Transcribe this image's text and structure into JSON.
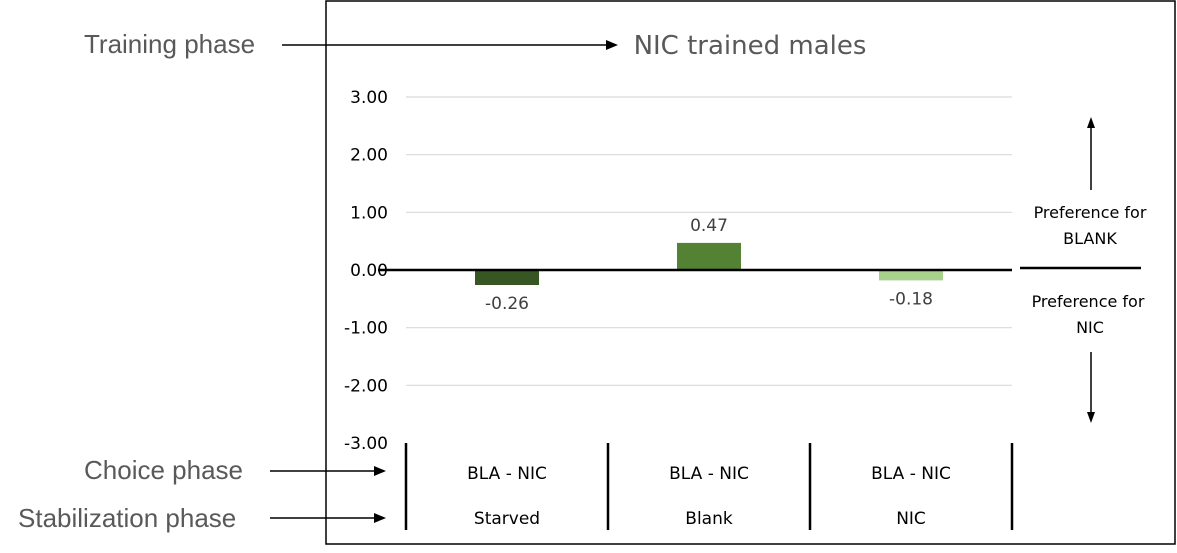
{
  "annotations": {
    "training_phase": "Training phase",
    "choice_phase": "Choice phase",
    "stabilization_phase": "Stabilization phase"
  },
  "preference": {
    "blank_line1": "Preference for",
    "blank_line2": "BLANK",
    "nic_line1": "Preference for",
    "nic_line2": "NIC"
  },
  "colors": {
    "starved": "#375623",
    "blank": "#548235",
    "nic": "#a9d18e",
    "gridline": "#d9d9d9",
    "axis": "#000000"
  },
  "chart_data": {
    "type": "bar",
    "title": "NIC trained males",
    "xlabel": "",
    "ylabel": "",
    "ylim": [
      -3,
      3
    ],
    "yticks": [
      "3.00",
      "2.00",
      "1.00",
      "0.00",
      "-1.00",
      "-2.00",
      "-3.00"
    ],
    "grid": true,
    "categories": [
      {
        "choice": "BLA - NIC",
        "stabilization": "Starved"
      },
      {
        "choice": "BLA - NIC",
        "stabilization": "Blank"
      },
      {
        "choice": "BLA - NIC",
        "stabilization": "NIC"
      }
    ],
    "values": [
      -0.26,
      0.47,
      -0.18
    ],
    "data_labels": [
      "-0.26",
      "0.47",
      "-0.18"
    ]
  }
}
